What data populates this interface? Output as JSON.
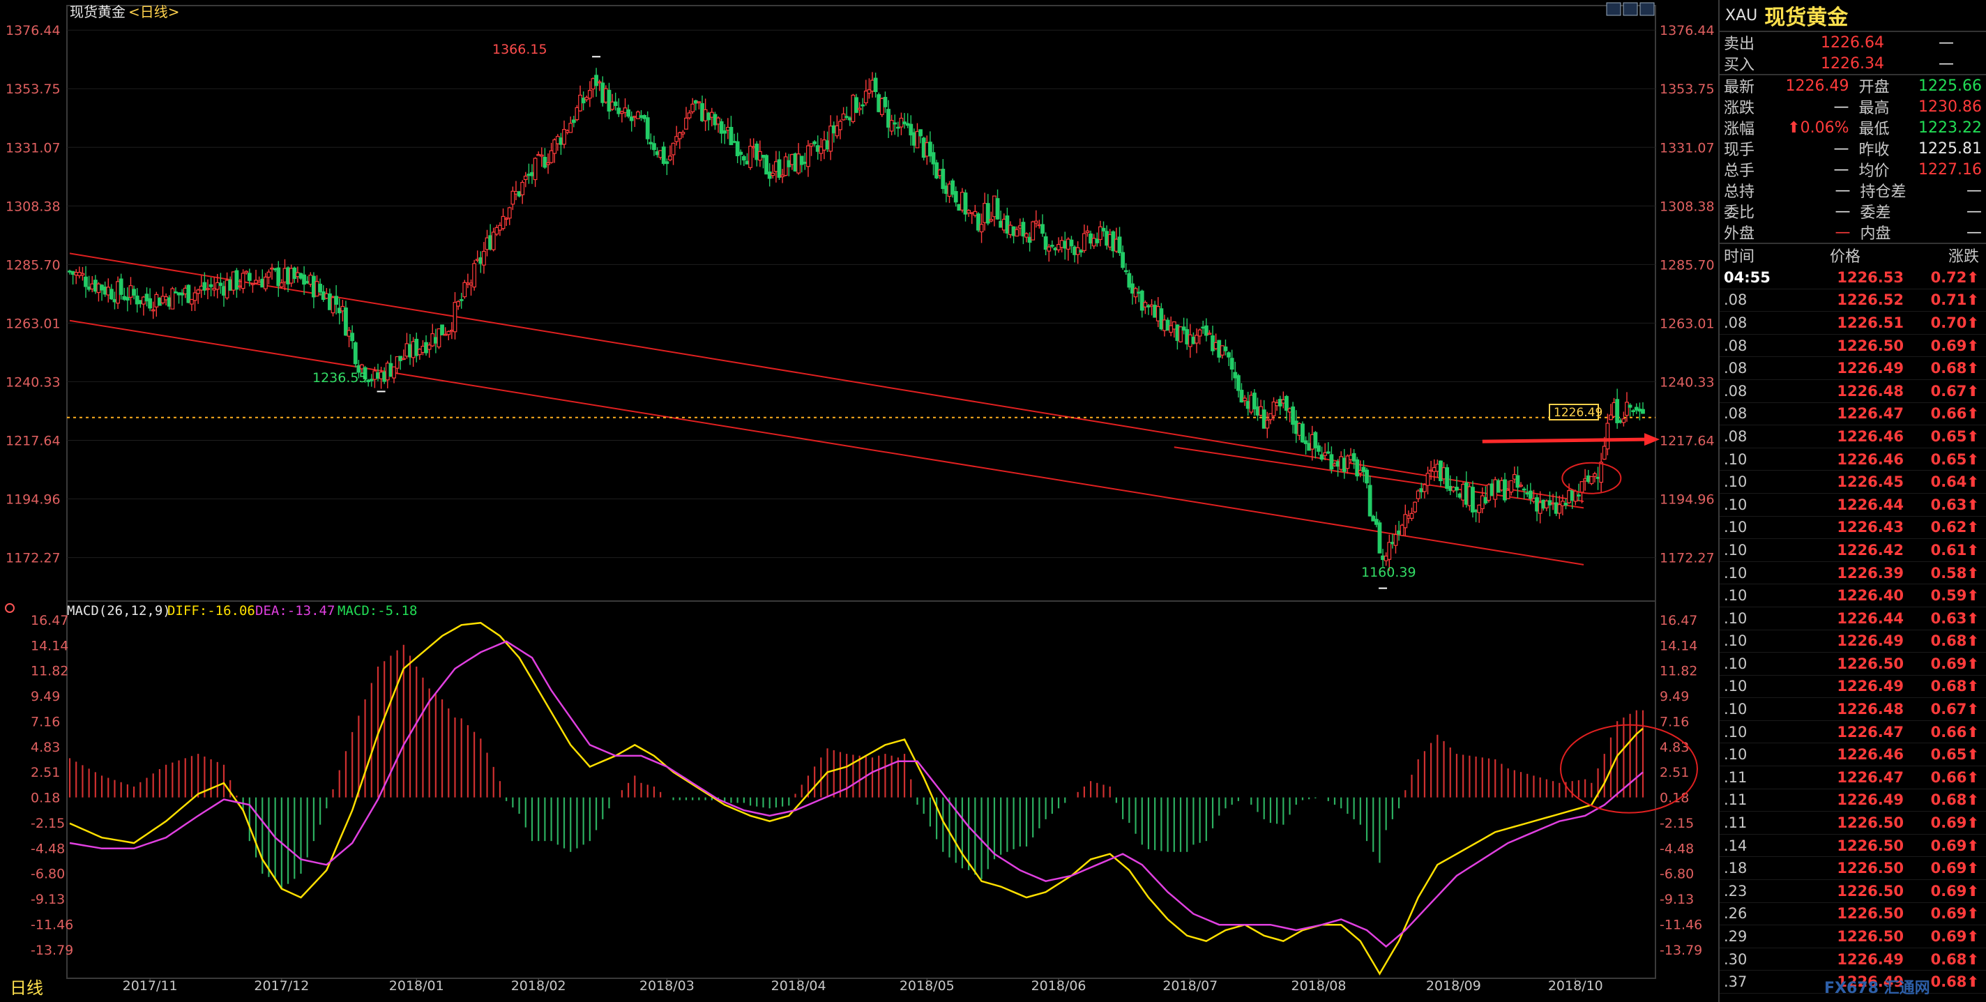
{
  "chart_title": "现货黄金",
  "chart_period": "<日线>",
  "bottom_tab": "日线",
  "main_axis": {
    "ticks": [
      1376.44,
      1353.75,
      1331.07,
      1308.38,
      1285.7,
      1263.01,
      1240.33,
      1217.64,
      1194.96,
      1172.27
    ],
    "ylim": [
      1156.5,
      1380.0
    ],
    "last_price_label": "1226.49"
  },
  "x_axis_labels": [
    "2017/11",
    "2017/12",
    "2018/01",
    "2018/02",
    "2018/03",
    "2018/04",
    "2018/05",
    "2018/06",
    "2018/07",
    "2018/08",
    "2018/09",
    "2018/10"
  ],
  "annotations": {
    "high": "1366.15",
    "low1": "1236.55",
    "low2": "1160.39"
  },
  "macd": {
    "title": "MACD(26,12,9)",
    "diff_label": "DIFF:-16.06",
    "dea_label": "DEA:-13.47",
    "macd_label": "MACD:-5.18",
    "ticks": [
      "16.47",
      "14.14",
      "11.82",
      "9.49",
      "7.16",
      "4.83",
      "2.51",
      "0.18",
      "-2.15",
      "-4.48",
      "-6.80",
      "-9.13",
      "-11.46",
      "-13.79"
    ]
  },
  "chart_data": {
    "type": "candlestick",
    "title": "现货黄金<日线>",
    "ylim": [
      1156.5,
      1380.0
    ],
    "x_range": [
      "2017/10",
      "2018/10"
    ],
    "key_prices": {
      "high": 1366.15,
      "low_dec": 1236.55,
      "low_aug": 1160.39,
      "last": 1226.49
    },
    "close_path": [
      [
        0,
        1283
      ],
      [
        12,
        1276
      ],
      [
        24,
        1272
      ],
      [
        38,
        1275
      ],
      [
        52,
        1279
      ],
      [
        64,
        1281
      ],
      [
        74,
        1279
      ],
      [
        84,
        1270
      ],
      [
        90,
        1248
      ],
      [
        95,
        1241
      ],
      [
        104,
        1250
      ],
      [
        118,
        1262
      ],
      [
        126,
        1282
      ],
      [
        134,
        1304
      ],
      [
        142,
        1318
      ],
      [
        150,
        1330
      ],
      [
        158,
        1345
      ],
      [
        164,
        1357
      ],
      [
        170,
        1344
      ],
      [
        178,
        1340
      ],
      [
        186,
        1325
      ],
      [
        194,
        1348
      ],
      [
        202,
        1339
      ],
      [
        210,
        1330
      ],
      [
        218,
        1322
      ],
      [
        226,
        1325
      ],
      [
        234,
        1330
      ],
      [
        242,
        1345
      ],
      [
        250,
        1353
      ],
      [
        256,
        1340
      ],
      [
        264,
        1335
      ],
      [
        270,
        1322
      ],
      [
        276,
        1313
      ],
      [
        282,
        1302
      ],
      [
        288,
        1308
      ],
      [
        294,
        1297
      ],
      [
        300,
        1299
      ],
      [
        308,
        1292
      ],
      [
        316,
        1294
      ],
      [
        324,
        1297
      ],
      [
        330,
        1280
      ],
      [
        336,
        1268
      ],
      [
        342,
        1262
      ],
      [
        348,
        1255
      ],
      [
        354,
        1258
      ],
      [
        360,
        1250
      ],
      [
        366,
        1234
      ],
      [
        372,
        1226
      ],
      [
        378,
        1230
      ],
      [
        384,
        1220
      ],
      [
        390,
        1212
      ],
      [
        396,
        1210
      ],
      [
        402,
        1206
      ],
      [
        406,
        1188
      ],
      [
        409,
        1171
      ],
      [
        414,
        1185
      ],
      [
        420,
        1198
      ],
      [
        426,
        1206
      ],
      [
        432,
        1201
      ],
      [
        438,
        1193
      ],
      [
        444,
        1198
      ],
      [
        450,
        1200
      ],
      [
        456,
        1195
      ],
      [
        462,
        1190
      ],
      [
        468,
        1195
      ],
      [
        472,
        1200
      ],
      [
        476,
        1207
      ],
      [
        480,
        1228
      ],
      [
        486,
        1230
      ],
      [
        490,
        1226
      ]
    ],
    "ma_lines": [
      {
        "from": [
          0,
          1290.0
        ],
        "to": [
          452,
          1198.5
        ]
      },
      {
        "from": [
          0,
          1264.0
        ],
        "to": [
          452,
          1174.0
        ]
      },
      {
        "from": [
          344,
          1215.0
        ],
        "to": [
          452,
          1196.0
        ]
      }
    ],
    "horizontal_line": 1226.49,
    "macd": {
      "diff": [
        [
          0,
          -2.2
        ],
        [
          10,
          -3.5
        ],
        [
          20,
          -4.0
        ],
        [
          30,
          -2.0
        ],
        [
          40,
          0.5
        ],
        [
          48,
          1.5
        ],
        [
          54,
          -1.0
        ],
        [
          60,
          -5.5
        ],
        [
          66,
          -8.2
        ],
        [
          72,
          -9.0
        ],
        [
          80,
          -6.5
        ],
        [
          88,
          -1.0
        ],
        [
          96,
          6.0
        ],
        [
          104,
          12.0
        ],
        [
          110,
          13.5
        ],
        [
          116,
          15.0
        ],
        [
          122,
          16.0
        ],
        [
          128,
          16.2
        ],
        [
          134,
          15.0
        ],
        [
          140,
          13.0
        ],
        [
          148,
          9.0
        ],
        [
          156,
          5.0
        ],
        [
          162,
          3.0
        ],
        [
          170,
          4.0
        ],
        [
          176,
          5.0
        ],
        [
          182,
          4.0
        ],
        [
          188,
          2.5
        ],
        [
          196,
          1.0
        ],
        [
          204,
          -0.5
        ],
        [
          212,
          -1.5
        ],
        [
          218,
          -2.0
        ],
        [
          224,
          -1.5
        ],
        [
          230,
          0.5
        ],
        [
          236,
          2.5
        ],
        [
          242,
          3.0
        ],
        [
          248,
          4.0
        ],
        [
          254,
          5.0
        ],
        [
          260,
          5.5
        ],
        [
          266,
          2.0
        ],
        [
          272,
          -2.0
        ],
        [
          278,
          -5.0
        ],
        [
          284,
          -7.5
        ],
        [
          290,
          -8.0
        ],
        [
          298,
          -9.0
        ],
        [
          304,
          -8.5
        ],
        [
          312,
          -7.0
        ],
        [
          318,
          -5.5
        ],
        [
          324,
          -5.0
        ],
        [
          330,
          -6.5
        ],
        [
          336,
          -9.0
        ],
        [
          342,
          -11.0
        ],
        [
          348,
          -12.5
        ],
        [
          354,
          -13.0
        ],
        [
          360,
          -12.0
        ],
        [
          366,
          -11.5
        ],
        [
          372,
          -12.5
        ],
        [
          378,
          -13.0
        ],
        [
          384,
          -12.0
        ],
        [
          390,
          -11.5
        ],
        [
          396,
          -11.5
        ],
        [
          402,
          -13.0
        ],
        [
          408,
          -16.0
        ],
        [
          414,
          -13.0
        ],
        [
          420,
          -9.0
        ],
        [
          426,
          -6.0
        ],
        [
          432,
          -5.0
        ],
        [
          438,
          -4.0
        ],
        [
          444,
          -3.0
        ],
        [
          450,
          -2.5
        ],
        [
          456,
          -2.0
        ],
        [
          462,
          -1.5
        ],
        [
          468,
          -1.0
        ],
        [
          474,
          -0.5
        ],
        [
          478,
          1.5
        ],
        [
          482,
          4.0
        ],
        [
          488,
          6.0
        ],
        [
          490,
          6.5
        ]
      ],
      "dea": [
        [
          0,
          -4.0
        ],
        [
          10,
          -4.5
        ],
        [
          20,
          -4.5
        ],
        [
          30,
          -3.5
        ],
        [
          40,
          -1.5
        ],
        [
          48,
          0.0
        ],
        [
          56,
          -0.5
        ],
        [
          64,
          -3.5
        ],
        [
          72,
          -5.5
        ],
        [
          80,
          -6.0
        ],
        [
          88,
          -4.0
        ],
        [
          96,
          0.0
        ],
        [
          104,
          5.0
        ],
        [
          112,
          9.0
        ],
        [
          120,
          12.0
        ],
        [
          128,
          13.5
        ],
        [
          136,
          14.5
        ],
        [
          144,
          13.0
        ],
        [
          150,
          10.0
        ],
        [
          156,
          7.5
        ],
        [
          162,
          5.0
        ],
        [
          170,
          4.0
        ],
        [
          178,
          4.0
        ],
        [
          186,
          3.0
        ],
        [
          194,
          1.5
        ],
        [
          202,
          0.0
        ],
        [
          210,
          -1.0
        ],
        [
          218,
          -1.5
        ],
        [
          226,
          -1.0
        ],
        [
          234,
          0.0
        ],
        [
          242,
          1.0
        ],
        [
          250,
          2.5
        ],
        [
          258,
          3.5
        ],
        [
          264,
          3.5
        ],
        [
          272,
          0.5
        ],
        [
          280,
          -2.5
        ],
        [
          288,
          -5.0
        ],
        [
          296,
          -6.5
        ],
        [
          304,
          -7.5
        ],
        [
          312,
          -7.0
        ],
        [
          320,
          -6.0
        ],
        [
          328,
          -5.0
        ],
        [
          334,
          -6.0
        ],
        [
          342,
          -8.5
        ],
        [
          350,
          -10.5
        ],
        [
          358,
          -11.5
        ],
        [
          366,
          -11.5
        ],
        [
          374,
          -11.5
        ],
        [
          382,
          -12.0
        ],
        [
          390,
          -11.5
        ],
        [
          396,
          -11.0
        ],
        [
          404,
          -12.0
        ],
        [
          410,
          -13.5
        ],
        [
          416,
          -12.0
        ],
        [
          424,
          -9.5
        ],
        [
          432,
          -7.0
        ],
        [
          440,
          -5.5
        ],
        [
          448,
          -4.0
        ],
        [
          456,
          -3.0
        ],
        [
          464,
          -2.0
        ],
        [
          472,
          -1.5
        ],
        [
          478,
          -0.5
        ],
        [
          484,
          1.0
        ],
        [
          490,
          2.5
        ]
      ]
    }
  },
  "panel": {
    "code": "XAU",
    "name": "现货黄金",
    "sell_label": "卖出",
    "sell": "1226.64",
    "sell_vol": "—",
    "buy_label": "买入",
    "buy": "1226.34",
    "buy_vol": "—",
    "rows": [
      {
        "l1": "最新",
        "v1": "1226.49",
        "c1": "red",
        "l2": "开盘",
        "v2": "1225.66",
        "c2": "green"
      },
      {
        "l1": "涨跌",
        "v1": "—",
        "c1": "white",
        "l2": "最高",
        "v2": "1230.86",
        "c2": "red"
      },
      {
        "l1": "涨幅",
        "v1": "⬆0.06%",
        "c1": "red",
        "l2": "最低",
        "v2": "1223.22",
        "c2": "green"
      },
      {
        "l1": "现手",
        "v1": "—",
        "c1": "white",
        "l2": "昨收",
        "v2": "1225.81",
        "c2": "white"
      },
      {
        "l1": "总手",
        "v1": "—",
        "c1": "white",
        "l2": "均价",
        "v2": "1227.16",
        "c2": "red"
      },
      {
        "l1": "总持",
        "v1": "—",
        "c1": "white",
        "l2": "持仓差",
        "v2": "—",
        "c2": "white"
      },
      {
        "l1": "委比",
        "v1": "—",
        "c1": "white",
        "l2": "委差",
        "v2": "—",
        "c2": "white"
      },
      {
        "l1": "外盘",
        "v1": "—",
        "c1": "red",
        "l2": "内盘",
        "v2": "—",
        "c2": "white"
      }
    ],
    "tick_header": {
      "time": "时间",
      "price": "价格",
      "change": "涨跌"
    },
    "ticks": [
      {
        "t": "04:55",
        "p": "1226.53",
        "c": "0.72⬆"
      },
      {
        "t": ".08",
        "p": "1226.52",
        "c": "0.71⬆"
      },
      {
        "t": ".08",
        "p": "1226.51",
        "c": "0.70⬆"
      },
      {
        "t": ".08",
        "p": "1226.50",
        "c": "0.69⬆"
      },
      {
        "t": ".08",
        "p": "1226.49",
        "c": "0.68⬆"
      },
      {
        "t": ".08",
        "p": "1226.48",
        "c": "0.67⬆"
      },
      {
        "t": ".08",
        "p": "1226.47",
        "c": "0.66⬆"
      },
      {
        "t": ".08",
        "p": "1226.46",
        "c": "0.65⬆"
      },
      {
        "t": ".10",
        "p": "1226.46",
        "c": "0.65⬆"
      },
      {
        "t": ".10",
        "p": "1226.45",
        "c": "0.64⬆"
      },
      {
        "t": ".10",
        "p": "1226.44",
        "c": "0.63⬆"
      },
      {
        "t": ".10",
        "p": "1226.43",
        "c": "0.62⬆"
      },
      {
        "t": ".10",
        "p": "1226.42",
        "c": "0.61⬆"
      },
      {
        "t": ".10",
        "p": "1226.39",
        "c": "0.58⬆"
      },
      {
        "t": ".10",
        "p": "1226.40",
        "c": "0.59⬆"
      },
      {
        "t": ".10",
        "p": "1226.44",
        "c": "0.63⬆"
      },
      {
        "t": ".10",
        "p": "1226.49",
        "c": "0.68⬆"
      },
      {
        "t": ".10",
        "p": "1226.50",
        "c": "0.69⬆"
      },
      {
        "t": ".10",
        "p": "1226.49",
        "c": "0.68⬆"
      },
      {
        "t": ".10",
        "p": "1226.48",
        "c": "0.67⬆"
      },
      {
        "t": ".10",
        "p": "1226.47",
        "c": "0.66⬆"
      },
      {
        "t": ".10",
        "p": "1226.46",
        "c": "0.65⬆"
      },
      {
        "t": ".11",
        "p": "1226.47",
        "c": "0.66⬆"
      },
      {
        "t": ".11",
        "p": "1226.49",
        "c": "0.68⬆"
      },
      {
        "t": ".11",
        "p": "1226.50",
        "c": "0.69⬆"
      },
      {
        "t": ".14",
        "p": "1226.50",
        "c": "0.69⬆"
      },
      {
        "t": ".18",
        "p": "1226.50",
        "c": "0.69⬆"
      },
      {
        "t": ".23",
        "p": "1226.50",
        "c": "0.69⬆"
      },
      {
        "t": ".26",
        "p": "1226.50",
        "c": "0.69⬆"
      },
      {
        "t": ".29",
        "p": "1226.50",
        "c": "0.69⬆"
      },
      {
        "t": ".30",
        "p": "1226.49",
        "c": "0.68⬆"
      },
      {
        "t": ".37",
        "p": "1226.49",
        "c": "0.68⬆"
      }
    ],
    "watermark": "FX678 汇通网"
  }
}
